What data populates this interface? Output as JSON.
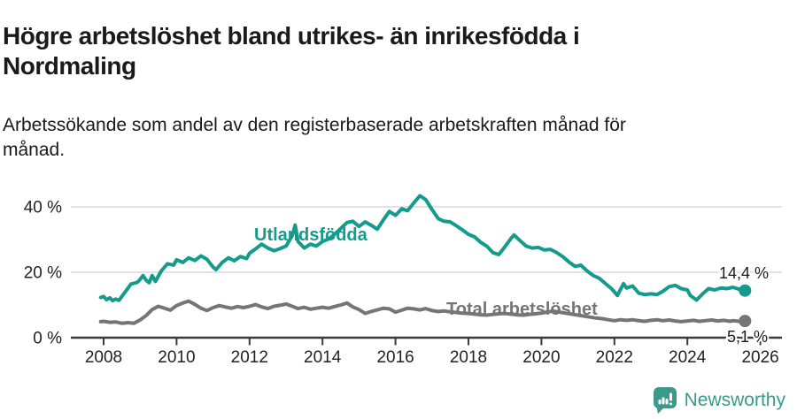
{
  "header": {
    "title_lines": [
      "Högre arbetslöshet bland utrikes- än inrikesfödda i",
      "Nordmaling"
    ],
    "subtitle_lines": [
      "Arbetssökande som andel av den registerbaserade arbetskraften månad för",
      "månad."
    ]
  },
  "chart_data": {
    "type": "line",
    "title": "Högre arbetslöshet bland utrikes- än inrikesfödda i Nordmaling",
    "subtitle": "Arbetssökande som andel av den registerbaserade arbetskraften månad för månad.",
    "grid": "horizontal",
    "legend_position": "inline-labels",
    "x_axis": {
      "range": [
        2007.9,
        2026.5
      ],
      "ticks": [
        2008,
        2010,
        2012,
        2014,
        2016,
        2018,
        2020,
        2022,
        2024,
        2026
      ]
    },
    "y_axis": {
      "unit": "%",
      "range": [
        0,
        50
      ],
      "ticks": [
        0,
        20,
        40
      ],
      "tick_labels": [
        "0 %",
        "20 %",
        "40 %"
      ]
    },
    "series": [
      {
        "name": "Utlandsfödda",
        "color": "#149b8c",
        "end_label": "14,4 %",
        "end_value": 14.4,
        "points": [
          [
            2007.92,
            12.3
          ],
          [
            2008.0,
            12.6
          ],
          [
            2008.08,
            11.6
          ],
          [
            2008.17,
            12.2
          ],
          [
            2008.25,
            11.3
          ],
          [
            2008.33,
            11.8
          ],
          [
            2008.42,
            11.4
          ],
          [
            2008.58,
            13.8
          ],
          [
            2008.75,
            16.4
          ],
          [
            2008.92,
            16.9
          ],
          [
            2009.0,
            17.8
          ],
          [
            2009.08,
            19.0
          ],
          [
            2009.17,
            17.5
          ],
          [
            2009.25,
            16.8
          ],
          [
            2009.33,
            19.0
          ],
          [
            2009.42,
            17.2
          ],
          [
            2009.58,
            20.4
          ],
          [
            2009.75,
            22.6
          ],
          [
            2009.92,
            22.2
          ],
          [
            2010.0,
            23.8
          ],
          [
            2010.17,
            23.0
          ],
          [
            2010.33,
            24.4
          ],
          [
            2010.5,
            23.6
          ],
          [
            2010.67,
            25.0
          ],
          [
            2010.83,
            24.0
          ],
          [
            2011.0,
            21.6
          ],
          [
            2011.08,
            20.8
          ],
          [
            2011.25,
            23.0
          ],
          [
            2011.42,
            24.4
          ],
          [
            2011.58,
            23.5
          ],
          [
            2011.75,
            24.8
          ],
          [
            2011.92,
            24.2
          ],
          [
            2012.0,
            25.8
          ],
          [
            2012.17,
            27.2
          ],
          [
            2012.33,
            28.6
          ],
          [
            2012.5,
            27.4
          ],
          [
            2012.67,
            26.6
          ],
          [
            2012.83,
            27.2
          ],
          [
            2013.0,
            28.0
          ],
          [
            2013.17,
            31.2
          ],
          [
            2013.25,
            34.4
          ],
          [
            2013.33,
            29.4
          ],
          [
            2013.5,
            27.4
          ],
          [
            2013.67,
            28.6
          ],
          [
            2013.83,
            28.0
          ],
          [
            2014.0,
            29.4
          ],
          [
            2014.17,
            30.2
          ],
          [
            2014.33,
            31.6
          ],
          [
            2014.5,
            33.4
          ],
          [
            2014.67,
            35.2
          ],
          [
            2014.83,
            35.6
          ],
          [
            2015.0,
            34.0
          ],
          [
            2015.17,
            35.4
          ],
          [
            2015.33,
            34.4
          ],
          [
            2015.5,
            33.2
          ],
          [
            2015.67,
            36.0
          ],
          [
            2015.83,
            38.6
          ],
          [
            2016.0,
            37.4
          ],
          [
            2016.17,
            39.4
          ],
          [
            2016.33,
            38.8
          ],
          [
            2016.5,
            41.2
          ],
          [
            2016.67,
            43.4
          ],
          [
            2016.83,
            42.2
          ],
          [
            2017.0,
            39.2
          ],
          [
            2017.17,
            36.4
          ],
          [
            2017.33,
            35.6
          ],
          [
            2017.5,
            35.4
          ],
          [
            2017.67,
            34.2
          ],
          [
            2017.83,
            33.0
          ],
          [
            2018.0,
            31.6
          ],
          [
            2018.17,
            30.8
          ],
          [
            2018.33,
            29.2
          ],
          [
            2018.5,
            28.0
          ],
          [
            2018.67,
            26.0
          ],
          [
            2018.83,
            25.4
          ],
          [
            2019.0,
            27.8
          ],
          [
            2019.17,
            30.4
          ],
          [
            2019.25,
            31.4
          ],
          [
            2019.42,
            29.6
          ],
          [
            2019.58,
            28.0
          ],
          [
            2019.75,
            27.4
          ],
          [
            2019.92,
            27.6
          ],
          [
            2020.08,
            26.8
          ],
          [
            2020.25,
            27.0
          ],
          [
            2020.42,
            26.0
          ],
          [
            2020.58,
            24.8
          ],
          [
            2020.75,
            23.2
          ],
          [
            2020.92,
            21.8
          ],
          [
            2021.08,
            22.2
          ],
          [
            2021.25,
            20.4
          ],
          [
            2021.42,
            19.0
          ],
          [
            2021.58,
            18.2
          ],
          [
            2021.75,
            16.6
          ],
          [
            2021.92,
            15.0
          ],
          [
            2022.0,
            14.0
          ],
          [
            2022.08,
            12.9
          ],
          [
            2022.25,
            16.5
          ],
          [
            2022.33,
            15.2
          ],
          [
            2022.5,
            15.8
          ],
          [
            2022.67,
            13.6
          ],
          [
            2022.83,
            13.2
          ],
          [
            2023.0,
            13.4
          ],
          [
            2023.17,
            13.2
          ],
          [
            2023.33,
            14.2
          ],
          [
            2023.5,
            15.6
          ],
          [
            2023.67,
            16.0
          ],
          [
            2023.83,
            15.0
          ],
          [
            2024.0,
            14.6
          ],
          [
            2024.08,
            12.9
          ],
          [
            2024.25,
            11.5
          ],
          [
            2024.42,
            13.4
          ],
          [
            2024.58,
            15.0
          ],
          [
            2024.75,
            14.6
          ],
          [
            2024.92,
            15.2
          ],
          [
            2025.08,
            15.0
          ],
          [
            2025.25,
            15.4
          ],
          [
            2025.42,
            14.8
          ],
          [
            2025.5,
            14.0
          ],
          [
            2025.58,
            14.4
          ]
        ]
      },
      {
        "name": "Total arbetslöshet",
        "color": "#757575",
        "end_label": "5,1 %",
        "end_value": 5.1,
        "points": [
          [
            2007.92,
            4.9
          ],
          [
            2008.0,
            5.0
          ],
          [
            2008.17,
            4.7
          ],
          [
            2008.33,
            4.8
          ],
          [
            2008.5,
            4.4
          ],
          [
            2008.67,
            4.6
          ],
          [
            2008.83,
            4.4
          ],
          [
            2009.0,
            5.4
          ],
          [
            2009.17,
            6.8
          ],
          [
            2009.33,
            8.6
          ],
          [
            2009.5,
            9.6
          ],
          [
            2009.67,
            9.0
          ],
          [
            2009.83,
            8.4
          ],
          [
            2010.0,
            9.8
          ],
          [
            2010.17,
            10.6
          ],
          [
            2010.33,
            11.2
          ],
          [
            2010.5,
            10.2
          ],
          [
            2010.67,
            9.0
          ],
          [
            2010.83,
            8.3
          ],
          [
            2011.0,
            9.2
          ],
          [
            2011.17,
            9.8
          ],
          [
            2011.33,
            9.4
          ],
          [
            2011.5,
            9.0
          ],
          [
            2011.67,
            9.5
          ],
          [
            2011.83,
            9.2
          ],
          [
            2012.0,
            9.6
          ],
          [
            2012.17,
            10.1
          ],
          [
            2012.33,
            9.4
          ],
          [
            2012.5,
            8.9
          ],
          [
            2012.67,
            9.6
          ],
          [
            2012.83,
            9.9
          ],
          [
            2013.0,
            10.3
          ],
          [
            2013.17,
            9.6
          ],
          [
            2013.33,
            8.9
          ],
          [
            2013.5,
            9.3
          ],
          [
            2013.67,
            8.7
          ],
          [
            2013.83,
            9.0
          ],
          [
            2014.0,
            9.3
          ],
          [
            2014.17,
            9.0
          ],
          [
            2014.33,
            9.5
          ],
          [
            2014.5,
            10.0
          ],
          [
            2014.67,
            10.6
          ],
          [
            2014.83,
            9.4
          ],
          [
            2015.0,
            8.6
          ],
          [
            2015.17,
            7.4
          ],
          [
            2015.33,
            8.0
          ],
          [
            2015.5,
            8.5
          ],
          [
            2015.67,
            9.0
          ],
          [
            2015.83,
            8.8
          ],
          [
            2016.0,
            7.8
          ],
          [
            2016.17,
            8.4
          ],
          [
            2016.33,
            9.0
          ],
          [
            2016.5,
            8.8
          ],
          [
            2016.67,
            8.5
          ],
          [
            2016.83,
            8.9
          ],
          [
            2017.0,
            8.3
          ],
          [
            2017.17,
            8.0
          ],
          [
            2017.33,
            8.2
          ],
          [
            2017.5,
            7.9
          ],
          [
            2017.67,
            7.7
          ],
          [
            2017.83,
            7.5
          ],
          [
            2018.0,
            7.4
          ],
          [
            2018.17,
            7.2
          ],
          [
            2018.33,
            7.0
          ],
          [
            2018.5,
            6.9
          ],
          [
            2018.67,
            7.1
          ],
          [
            2018.83,
            7.3
          ],
          [
            2019.0,
            7.4
          ],
          [
            2019.17,
            7.2
          ],
          [
            2019.33,
            7.0
          ],
          [
            2019.5,
            6.9
          ],
          [
            2019.67,
            7.1
          ],
          [
            2019.83,
            7.3
          ],
          [
            2020.0,
            7.5
          ],
          [
            2020.17,
            7.9
          ],
          [
            2020.33,
            8.1
          ],
          [
            2020.5,
            7.8
          ],
          [
            2020.67,
            7.5
          ],
          [
            2020.83,
            7.2
          ],
          [
            2021.0,
            6.9
          ],
          [
            2021.17,
            6.6
          ],
          [
            2021.33,
            6.3
          ],
          [
            2021.5,
            6.0
          ],
          [
            2021.67,
            5.8
          ],
          [
            2021.83,
            5.5
          ],
          [
            2022.0,
            5.2
          ],
          [
            2022.17,
            5.5
          ],
          [
            2022.33,
            5.3
          ],
          [
            2022.5,
            5.5
          ],
          [
            2022.67,
            5.2
          ],
          [
            2022.83,
            5.0
          ],
          [
            2023.0,
            5.3
          ],
          [
            2023.17,
            5.5
          ],
          [
            2023.33,
            5.2
          ],
          [
            2023.5,
            5.4
          ],
          [
            2023.67,
            5.1
          ],
          [
            2023.83,
            4.9
          ],
          [
            2024.0,
            5.1
          ],
          [
            2024.17,
            5.3
          ],
          [
            2024.33,
            5.0
          ],
          [
            2024.5,
            5.2
          ],
          [
            2024.67,
            5.4
          ],
          [
            2024.83,
            5.1
          ],
          [
            2025.0,
            5.3
          ],
          [
            2025.17,
            5.0
          ],
          [
            2025.25,
            5.2
          ],
          [
            2025.42,
            5.0
          ],
          [
            2025.58,
            5.1
          ]
        ]
      }
    ]
  },
  "footer": {
    "logo_text": "Newsworthy"
  },
  "colors": {
    "accent_teal": "#149b8c",
    "series_gray": "#757575",
    "logo_teal": "#3b9a8b",
    "grid": "#d8d8d8",
    "axis": "#3a3a3a",
    "text": "#1a1a1a"
  }
}
